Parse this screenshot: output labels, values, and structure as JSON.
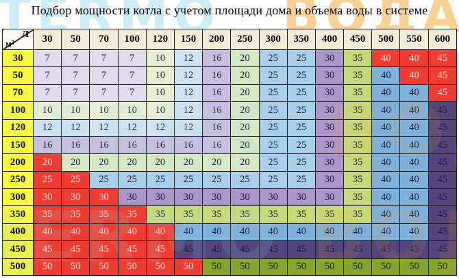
{
  "chart_data": {
    "type": "table",
    "title": "Подбор мощности котла с учетом площади дома и объема воды в системе",
    "column_axis_label": "Л",
    "row_axis_label": "м²",
    "columns": [
      30,
      50,
      70,
      100,
      120,
      150,
      200,
      250,
      300,
      350,
      400,
      450,
      500,
      550,
      600
    ],
    "rows": [
      30,
      50,
      70,
      100,
      120,
      150,
      200,
      250,
      300,
      350,
      400,
      450,
      500
    ],
    "values": [
      [
        7,
        7,
        7,
        7,
        10,
        12,
        16,
        20,
        25,
        25,
        30,
        35,
        40,
        40,
        45
      ],
      [
        7,
        7,
        7,
        7,
        10,
        12,
        16,
        20,
        25,
        25,
        30,
        35,
        40,
        40,
        45
      ],
      [
        7,
        7,
        7,
        7,
        10,
        12,
        16,
        20,
        25,
        25,
        30,
        35,
        40,
        40,
        45
      ],
      [
        10,
        10,
        10,
        10,
        10,
        12,
        16,
        20,
        25,
        25,
        30,
        35,
        40,
        40,
        45
      ],
      [
        12,
        12,
        12,
        12,
        12,
        12,
        16,
        20,
        25,
        25,
        30,
        35,
        40,
        40,
        45
      ],
      [
        16,
        16,
        16,
        16,
        16,
        16,
        16,
        20,
        25,
        25,
        30,
        35,
        40,
        40,
        45
      ],
      [
        20,
        20,
        20,
        20,
        20,
        20,
        20,
        20,
        25,
        25,
        30,
        35,
        40,
        40,
        45
      ],
      [
        25,
        25,
        25,
        25,
        25,
        25,
        25,
        25,
        25,
        25,
        30,
        35,
        40,
        40,
        45
      ],
      [
        30,
        30,
        30,
        30,
        30,
        30,
        30,
        30,
        30,
        30,
        30,
        35,
        40,
        40,
        45
      ],
      [
        35,
        35,
        35,
        35,
        35,
        35,
        35,
        35,
        35,
        35,
        35,
        35,
        40,
        40,
        45
      ],
      [
        40,
        40,
        40,
        40,
        40,
        40,
        40,
        40,
        40,
        40,
        40,
        40,
        40,
        40,
        45
      ],
      [
        45,
        45,
        45,
        45,
        45,
        45,
        45,
        45,
        45,
        45,
        45,
        45,
        45,
        45,
        45
      ],
      [
        50,
        50,
        50,
        50,
        50,
        50,
        50,
        50,
        50,
        50,
        50,
        50,
        50,
        50,
        50
      ]
    ],
    "red_cells": [
      [
        12,
        13,
        14
      ],
      [
        13,
        14
      ],
      [
        14
      ],
      [],
      [],
      [],
      [
        0
      ],
      [
        0,
        1
      ],
      [
        0,
        1,
        2
      ],
      [
        0,
        1,
        2,
        3
      ],
      [
        0,
        1,
        2,
        3,
        4
      ],
      [
        0,
        1,
        2,
        3,
        4
      ],
      [
        0,
        1,
        2,
        3,
        4,
        5
      ]
    ]
  },
  "watermark": {
    "brand_primary": "TERMO",
    "brand_secondary": "ВОДА",
    "color_primary": "#9adcef",
    "color_secondary": "#f6a52a"
  },
  "colors": {
    "value_bg": {
      "7": "#e4daed",
      "10": "#e6efd1",
      "12": "#cee2f2",
      "16": "#c8bfe0",
      "20": "#d5e9c5",
      "25": "#a9cee9",
      "30": "#ac95c8",
      "35": "#c6da79",
      "40": "#7fb0da",
      "45": "#55457c",
      "50": "#85a52d"
    },
    "red_bg": "#ef3d34",
    "text_dark": "#1d1d37",
    "text_on_red": "#fadfdb",
    "header_bg": "#f1ebd8",
    "corner_bg": "#fbfaf2",
    "label_bg_top": "#faf73f",
    "label_bg_bottom": "#e9ef4d",
    "grid": "#1e1e1e"
  }
}
